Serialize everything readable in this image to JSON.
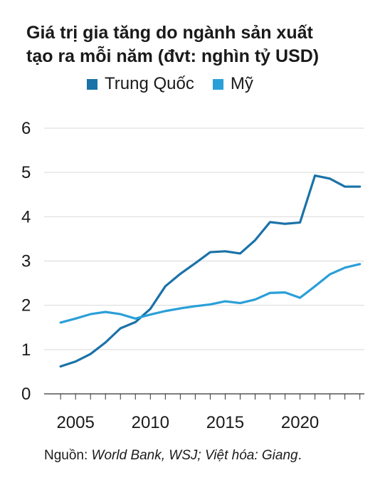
{
  "chart_data": {
    "type": "line",
    "title_line1": "Giá trị gia tăng do ngành sản xuất",
    "title_line2": "tạo ra mỗi năm (đvt: nghìn tỷ USD)",
    "xlabel": "",
    "ylabel": "",
    "ylim": [
      0,
      6
    ],
    "xlim": [
      2002.9,
      2024.3
    ],
    "yticks": [
      0,
      1,
      2,
      3,
      4,
      5,
      6
    ],
    "xticks": [
      2005,
      2010,
      2015,
      2020
    ],
    "grid": true,
    "legend_position": "top",
    "x": [
      2004,
      2005,
      2006,
      2007,
      2008,
      2009,
      2010,
      2011,
      2012,
      2013,
      2014,
      2015,
      2016,
      2017,
      2018,
      2019,
      2020,
      2021,
      2022,
      2023,
      2024
    ],
    "series": [
      {
        "name": "Trung Quốc",
        "color": "#1a72a8",
        "values": [
          0.62,
          0.73,
          0.9,
          1.16,
          1.48,
          1.62,
          1.92,
          2.43,
          2.71,
          2.95,
          3.2,
          3.22,
          3.17,
          3.47,
          3.88,
          3.84,
          3.87,
          4.93,
          4.86,
          4.68,
          4.68
        ]
      },
      {
        "name": "Mỹ",
        "color": "#2a9fd8",
        "values": [
          1.61,
          1.7,
          1.8,
          1.85,
          1.8,
          1.7,
          1.79,
          1.87,
          1.93,
          1.98,
          2.02,
          2.09,
          2.05,
          2.13,
          2.28,
          2.29,
          2.17,
          2.43,
          2.7,
          2.85,
          2.93
        ]
      }
    ]
  },
  "source": {
    "prefix": "Nguồn: ",
    "italic": "World Bank, WSJ; Việt hóa: Giang",
    "suffix": "."
  }
}
